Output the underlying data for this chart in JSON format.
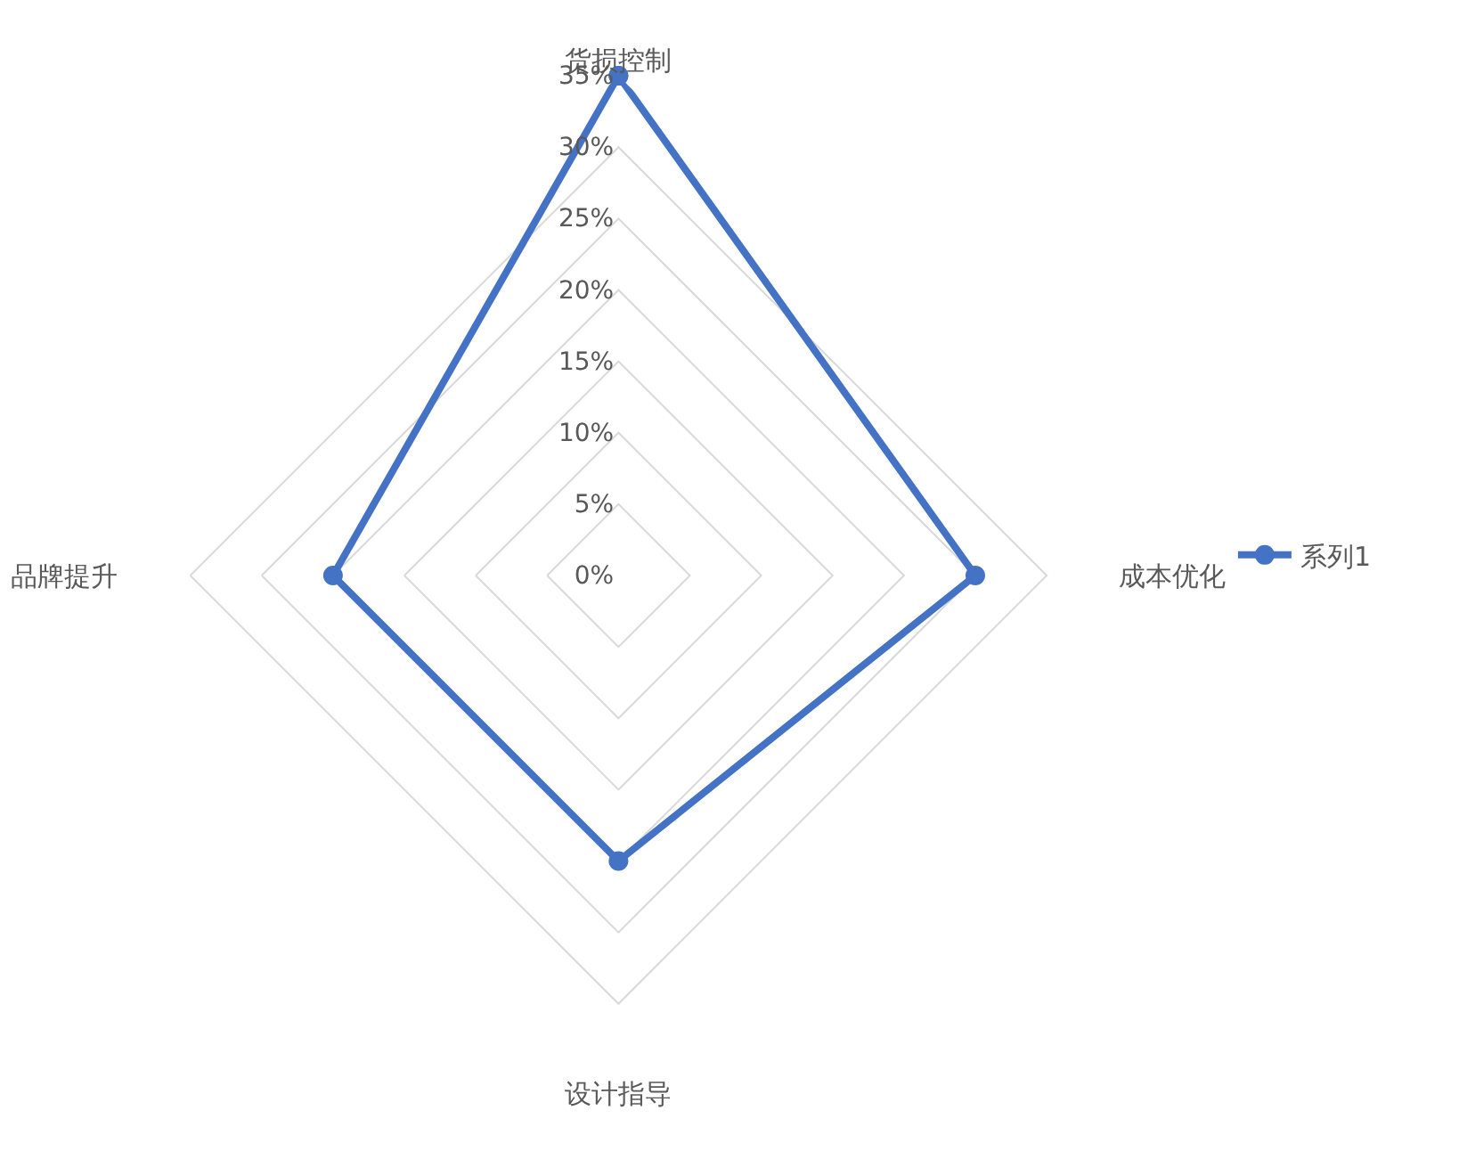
{
  "chart_data": {
    "type": "radar",
    "categories": [
      "货损控制",
      "成本优化",
      "设计指导",
      "品牌提升"
    ],
    "series": [
      {
        "name": "系列1",
        "color": "#4472c4",
        "values": [
          35,
          25,
          20,
          20
        ]
      }
    ],
    "ylim": [
      0,
      35
    ],
    "yticks": [
      {
        "value": 0,
        "label": "0%"
      },
      {
        "value": 5,
        "label": "5%"
      },
      {
        "value": 10,
        "label": "10%"
      },
      {
        "value": 15,
        "label": "15%"
      },
      {
        "value": 20,
        "label": "20%"
      },
      {
        "value": 25,
        "label": "25%"
      },
      {
        "value": 30,
        "label": "30%"
      },
      {
        "value": 35,
        "label": "35%"
      }
    ],
    "grid": true,
    "legend": "right",
    "marker": "circle",
    "line_style": "solid"
  }
}
